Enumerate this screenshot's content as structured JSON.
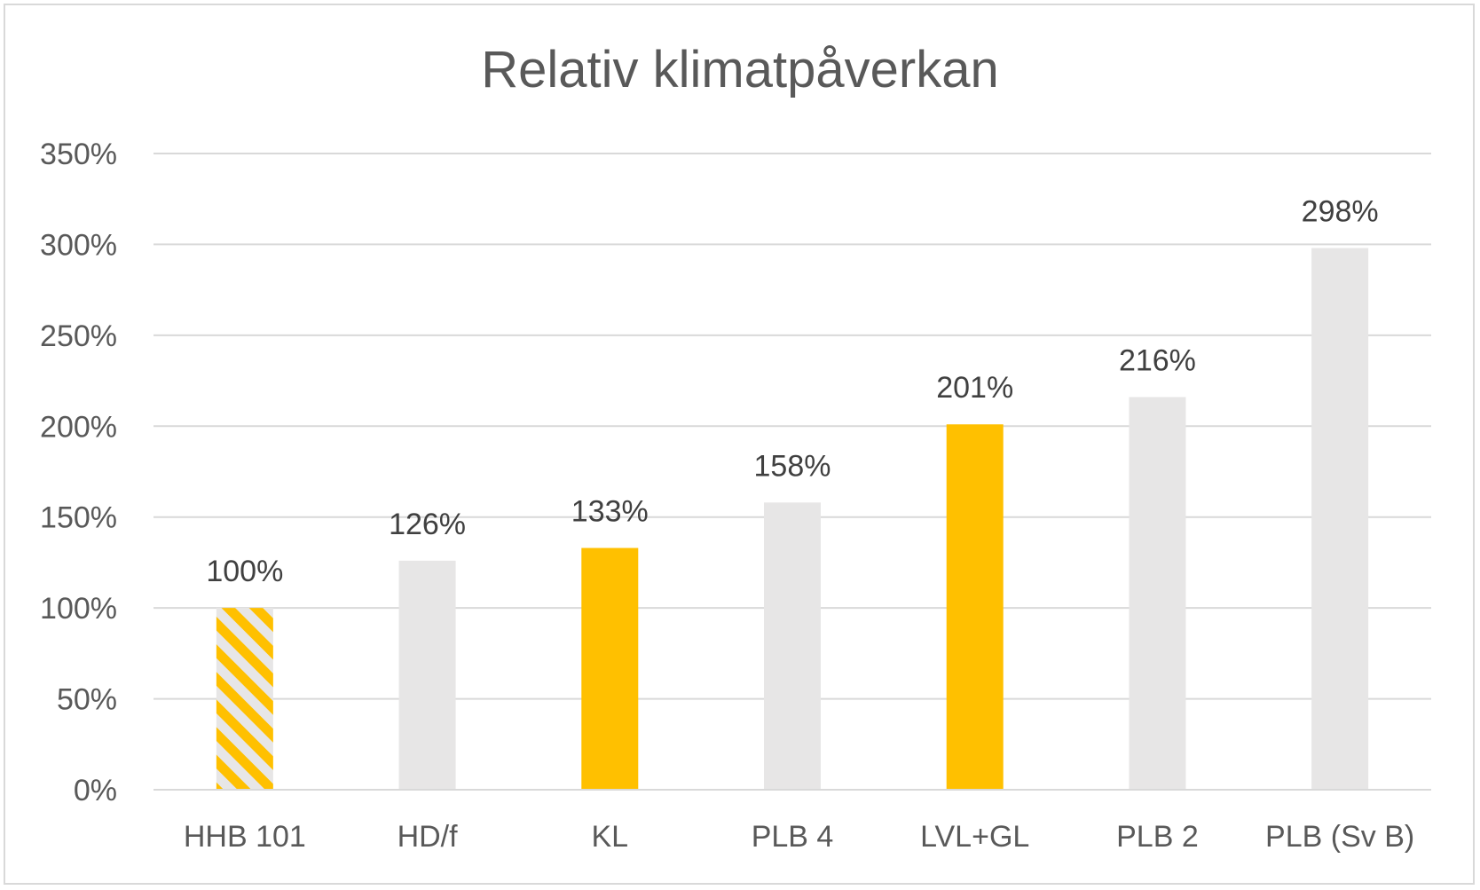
{
  "chart_data": {
    "type": "bar",
    "title": "Relativ klimatpåverkan",
    "xlabel": "",
    "ylabel": "",
    "categories": [
      "HHB 101",
      "HD/f",
      "KL",
      "PLB 4",
      "LVL+GL",
      "PLB 2",
      "PLB (Sv B)"
    ],
    "values": [
      100,
      126,
      133,
      158,
      201,
      216,
      298
    ],
    "data_labels": [
      "100%",
      "126%",
      "133%",
      "158%",
      "201%",
      "216%",
      "298%"
    ],
    "bar_styles": [
      "hatched",
      "plain",
      "highlight",
      "plain",
      "highlight",
      "plain",
      "plain"
    ],
    "ylim": [
      0,
      350
    ],
    "yticks": [
      0,
      50,
      100,
      150,
      200,
      250,
      300,
      350
    ],
    "ytick_labels": [
      "0%",
      "50%",
      "100%",
      "150%",
      "200%",
      "250%",
      "300%",
      "350%"
    ],
    "grid": true,
    "legend": "none",
    "colors": {
      "plain": "#e7e6e6",
      "highlight": "#ffc000",
      "hatch_stripe": "#ffc000",
      "hatch_base": "#e7e6e6",
      "gridline": "#d9d9d9",
      "text": "#595959",
      "label": "#404040"
    }
  }
}
